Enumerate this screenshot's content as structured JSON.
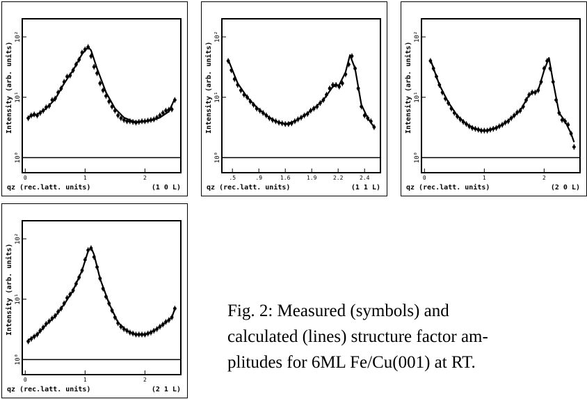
{
  "caption": {
    "line1": "Fig. 2: Measured (symbols) and",
    "line2": "calculated (lines) structure factor am-",
    "line3": "plitudes for 6ML Fe/Cu(001) at RT."
  },
  "chart_data": [
    {
      "type": "line",
      "panel": "(1 0 L)",
      "ylabel": "Intensity (arb. units)",
      "xlabel": "qz (rec.latt. units)",
      "xlabel_index": "(1  0  L)",
      "x_tick_labels": [
        "0",
        "1",
        "2"
      ],
      "y_tick_labels": [
        "10⁰",
        "10¹",
        "10²"
      ],
      "xlim": [
        -0.05,
        2.6
      ],
      "ylim_log": [
        -0.25,
        2.3
      ],
      "grid": false,
      "measured": {
        "x": [
          0.05,
          0.1,
          0.15,
          0.2,
          0.25,
          0.3,
          0.35,
          0.4,
          0.45,
          0.5,
          0.55,
          0.6,
          0.65,
          0.7,
          0.75,
          0.8,
          0.85,
          0.9,
          0.95,
          1.0,
          1.05,
          1.1,
          1.15,
          1.2,
          1.25,
          1.3,
          1.35,
          1.4,
          1.45,
          1.5,
          1.55,
          1.6,
          1.65,
          1.7,
          1.75,
          1.8,
          1.85,
          1.9,
          1.95,
          2.0,
          2.05,
          2.1,
          2.15,
          2.2,
          2.25,
          2.3,
          2.35,
          2.4,
          2.45,
          2.5
        ],
        "y": [
          4.5,
          5.0,
          5.2,
          5.0,
          5.5,
          6.0,
          6.8,
          7.2,
          9.0,
          9.5,
          12,
          14,
          18,
          22,
          23,
          28,
          35,
          42,
          55,
          62,
          68,
          48,
          32,
          25,
          17,
          13,
          10.5,
          8.5,
          7.0,
          6.0,
          5.0,
          4.5,
          4.2,
          4.0,
          4.0,
          3.9,
          3.8,
          3.9,
          4.0,
          4.0,
          4.1,
          4.2,
          4.3,
          4.6,
          5.0,
          5.5,
          6.0,
          6.2,
          6.3,
          9.0
        ]
      },
      "calculated": {
        "x": [
          0.05,
          0.2,
          0.35,
          0.5,
          0.65,
          0.8,
          0.95,
          1.05,
          1.1,
          1.2,
          1.35,
          1.5,
          1.65,
          1.8,
          1.95,
          2.1,
          2.25,
          2.4,
          2.5
        ],
        "y": [
          4.7,
          5.2,
          6.5,
          9.3,
          17,
          28,
          52,
          68,
          60,
          30,
          12,
          6.5,
          4.6,
          4.0,
          3.9,
          4.1,
          4.6,
          5.8,
          9.5
        ]
      }
    },
    {
      "type": "line",
      "panel": "(1 1 L)",
      "ylabel": "Intensity (arb. units)",
      "xlabel": "qz (rec.latt. units)",
      "xlabel_index": "(1  1  L)",
      "x_tick_labels": [
        ".5",
        ".9",
        "1.6",
        "1.9",
        "2.2",
        "2.4"
      ],
      "y_tick_labels": [
        "10⁰",
        "10¹",
        "10²"
      ],
      "xlim": [
        0.6,
        3.1
      ],
      "ylim_log": [
        -0.25,
        2.3
      ],
      "grid": false,
      "measured": {
        "x": [
          0.7,
          0.75,
          0.8,
          0.85,
          0.9,
          0.95,
          1.0,
          1.05,
          1.1,
          1.15,
          1.2,
          1.25,
          1.3,
          1.35,
          1.4,
          1.45,
          1.5,
          1.55,
          1.6,
          1.65,
          1.7,
          1.75,
          1.8,
          1.85,
          1.9,
          1.95,
          2.0,
          2.05,
          2.1,
          2.15,
          2.2,
          2.25,
          2.3,
          2.35,
          2.4,
          2.45,
          2.5,
          2.55,
          2.6,
          2.65,
          2.7,
          2.75,
          2.8,
          2.85,
          2.9,
          2.95,
          3.0
        ],
        "y": [
          40,
          28,
          20,
          16,
          13,
          11,
          10,
          8.5,
          7.5,
          6.5,
          6.0,
          5.5,
          5.0,
          4.5,
          4.2,
          4.0,
          3.8,
          3.7,
          3.6,
          3.6,
          3.7,
          4.0,
          4.3,
          4.6,
          5.0,
          5.3,
          6.0,
          6.5,
          7.0,
          8.0,
          9.0,
          11,
          14,
          16,
          16,
          15,
          17,
          24,
          35,
          48,
          30,
          14,
          7.0,
          5.0,
          4.5,
          4.0,
          3.2
        ]
      },
      "calculated": {
        "x": [
          0.7,
          0.85,
          1.0,
          1.15,
          1.3,
          1.45,
          1.6,
          1.75,
          1.9,
          2.05,
          2.2,
          2.35,
          2.45,
          2.55,
          2.62,
          2.7,
          2.8,
          2.9,
          3.0
        ],
        "y": [
          42,
          17,
          10,
          6.8,
          5.0,
          4.0,
          3.6,
          4.0,
          5.0,
          6.5,
          9.0,
          15,
          16,
          26,
          50,
          30,
          7.5,
          4.5,
          3.2
        ]
      }
    },
    {
      "type": "line",
      "panel": "(2 0 L)",
      "ylabel": "Intensity (arb. units)",
      "xlabel": "qz (rec.latt. units)",
      "xlabel_index": "(2  0  L)",
      "x_tick_labels": [
        "0",
        "1",
        "2"
      ],
      "y_tick_labels": [
        "10⁰",
        "10¹",
        "10²"
      ],
      "xlim": [
        -0.05,
        2.6
      ],
      "ylim_log": [
        -0.25,
        2.3
      ],
      "grid": false,
      "measured": {
        "x": [
          0.1,
          0.15,
          0.2,
          0.25,
          0.3,
          0.35,
          0.4,
          0.45,
          0.5,
          0.55,
          0.6,
          0.65,
          0.7,
          0.75,
          0.8,
          0.85,
          0.9,
          0.95,
          1.0,
          1.05,
          1.1,
          1.15,
          1.2,
          1.25,
          1.3,
          1.35,
          1.4,
          1.45,
          1.5,
          1.55,
          1.6,
          1.65,
          1.7,
          1.75,
          1.8,
          1.85,
          1.9,
          1.95,
          2.0,
          2.05,
          2.1,
          2.15,
          2.2,
          2.25,
          2.3,
          2.35,
          2.4,
          2.45,
          2.5
        ],
        "y": [
          40,
          30,
          22,
          16,
          12,
          9.5,
          8.0,
          6.5,
          5.5,
          4.8,
          4.3,
          3.9,
          3.6,
          3.3,
          3.1,
          3.0,
          2.9,
          2.8,
          2.8,
          2.8,
          2.9,
          3.0,
          3.1,
          3.3,
          3.5,
          3.8,
          4.0,
          4.5,
          5.0,
          5.6,
          6.0,
          7.0,
          9.0,
          11,
          12,
          12,
          13,
          18,
          30,
          40,
          30,
          18,
          9.0,
          5.5,
          4.2,
          4.0,
          3.5,
          2.5,
          1.5
        ]
      },
      "calculated": {
        "x": [
          0.1,
          0.25,
          0.4,
          0.55,
          0.7,
          0.85,
          1.0,
          1.15,
          1.3,
          1.45,
          1.6,
          1.75,
          1.9,
          2.0,
          2.08,
          2.15,
          2.25,
          2.35,
          2.45,
          2.5
        ],
        "y": [
          42,
          16,
          8.2,
          4.9,
          3.6,
          3.0,
          2.8,
          3.0,
          3.5,
          4.5,
          6.0,
          11,
          13,
          28,
          45,
          18,
          5.5,
          4.0,
          2.5,
          1.8
        ]
      }
    },
    {
      "type": "line",
      "panel": "(2 1 L)",
      "ylabel": "Intensity (arb. units)",
      "xlabel": "qz (rec.latt. units)",
      "xlabel_index": "(2  1  L)",
      "x_tick_labels": [
        "0",
        "1",
        "2"
      ],
      "y_tick_labels": [
        "10⁰",
        "10¹",
        "10²"
      ],
      "xlim": [
        -0.05,
        2.6
      ],
      "ylim_log": [
        -0.25,
        2.3
      ],
      "grid": false,
      "measured": {
        "x": [
          0.05,
          0.1,
          0.15,
          0.2,
          0.25,
          0.3,
          0.35,
          0.4,
          0.45,
          0.5,
          0.55,
          0.6,
          0.65,
          0.7,
          0.75,
          0.8,
          0.85,
          0.9,
          0.95,
          1.0,
          1.05,
          1.1,
          1.15,
          1.2,
          1.25,
          1.3,
          1.35,
          1.4,
          1.45,
          1.5,
          1.55,
          1.6,
          1.65,
          1.7,
          1.75,
          1.8,
          1.85,
          1.9,
          1.95,
          2.0,
          2.05,
          2.1,
          2.15,
          2.2,
          2.25,
          2.3,
          2.35,
          2.4,
          2.45,
          2.5
        ],
        "y": [
          2.0,
          2.2,
          2.4,
          2.6,
          3.0,
          3.4,
          3.9,
          4.3,
          4.8,
          5.3,
          6.2,
          7.0,
          8.5,
          10.5,
          12,
          14,
          18,
          23,
          30,
          45,
          65,
          70,
          50,
          34,
          22,
          15,
          11,
          8.5,
          6.5,
          5.0,
          4.0,
          3.5,
          3.2,
          3.0,
          2.8,
          2.7,
          2.6,
          2.6,
          2.6,
          2.6,
          2.7,
          2.8,
          3.0,
          3.2,
          3.5,
          3.8,
          4.2,
          4.5,
          5.0,
          7.0
        ]
      },
      "calculated": {
        "x": [
          0.05,
          0.2,
          0.35,
          0.5,
          0.65,
          0.8,
          0.95,
          1.05,
          1.1,
          1.15,
          1.25,
          1.4,
          1.55,
          1.7,
          1.85,
          2.0,
          2.15,
          2.3,
          2.45,
          2.5
        ],
        "y": [
          2.1,
          2.6,
          3.8,
          5.2,
          8.2,
          14,
          30,
          62,
          72,
          55,
          22,
          8.5,
          4.1,
          3.0,
          2.6,
          2.6,
          3.0,
          3.8,
          5.0,
          7.0
        ]
      }
    }
  ]
}
